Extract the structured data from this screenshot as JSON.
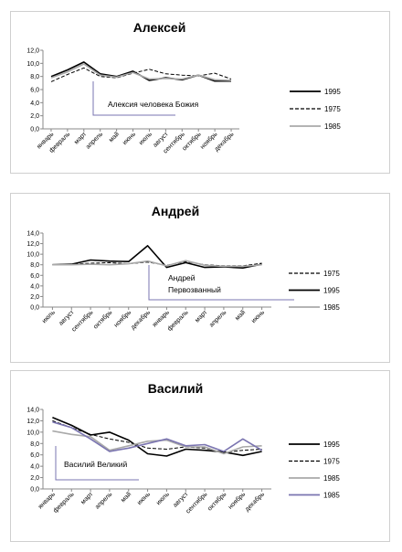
{
  "chart_data": [
    {
      "type": "line",
      "title": "Алексей",
      "categories": [
        "январь",
        "февраль",
        "март",
        "апрель",
        "май",
        "июнь",
        "июль",
        "август",
        "сентябрь",
        "октябрь",
        "ноябрь",
        "декабрь"
      ],
      "ylim": [
        0,
        12
      ],
      "yticks": [
        "0,0",
        "2,0",
        "4,0",
        "6,0",
        "8,0",
        "10,0",
        "12,0"
      ],
      "legend_position": "right",
      "annotation": "Алексия человека Божия",
      "series": [
        {
          "name": "1995",
          "style": "solid-black",
          "values": [
            8.0,
            9.0,
            10.2,
            8.4,
            8.0,
            8.8,
            7.4,
            7.8,
            7.5,
            8.2,
            7.3,
            7.3
          ]
        },
        {
          "name": "1975",
          "style": "dashed-black",
          "values": [
            7.2,
            8.3,
            9.3,
            8.0,
            7.8,
            8.5,
            9.1,
            8.4,
            8.2,
            8.1,
            8.5,
            7.6
          ]
        },
        {
          "name": "1985",
          "style": "solid-gray",
          "values": [
            7.8,
            8.7,
            9.9,
            8.2,
            7.9,
            8.6,
            7.6,
            7.7,
            7.6,
            8.2,
            7.5,
            7.4
          ]
        }
      ]
    },
    {
      "type": "line",
      "title": "Андрей",
      "categories": [
        "июль",
        "август",
        "сентябрь",
        "октябрь",
        "ноябрь",
        "декабрь",
        "январь",
        "февраль",
        "март",
        "апрель",
        "май",
        "июнь"
      ],
      "ylim": [
        0,
        14
      ],
      "yticks": [
        "0,0",
        "2,0",
        "4,0",
        "6,0",
        "8,0",
        "10,0",
        "12,0",
        "14,0"
      ],
      "legend_position": "right",
      "annotation": [
        "Андрей",
        "Первозванный"
      ],
      "series": [
        {
          "name": "1975",
          "style": "dashed-black",
          "values": [
            8.0,
            8.1,
            8.3,
            8.4,
            8.2,
            8.5,
            7.9,
            8.6,
            8.0,
            7.8,
            7.8,
            8.3
          ]
        },
        {
          "name": "1995",
          "style": "solid-black",
          "values": [
            8.0,
            8.1,
            8.9,
            8.7,
            8.6,
            11.6,
            7.5,
            8.4,
            7.5,
            7.6,
            7.4,
            8.1
          ]
        },
        {
          "name": "1985",
          "style": "solid-gray",
          "values": [
            8.0,
            8.0,
            8.1,
            8.0,
            8.2,
            8.7,
            7.8,
            8.8,
            7.9,
            7.7,
            7.7,
            8.0
          ]
        }
      ]
    },
    {
      "type": "line",
      "title": "Василий",
      "categories": [
        "январь",
        "февраль",
        "март",
        "апрель",
        "май",
        "июнь",
        "июль",
        "август",
        "сентябрь",
        "октябрь",
        "ноябрь",
        "декабрь"
      ],
      "ylim": [
        0,
        14
      ],
      "yticks": [
        "0,0",
        "2,0",
        "4,0",
        "6,0",
        "8,0",
        "10,0",
        "12,0",
        "14,0"
      ],
      "legend_position": "right",
      "annotation": "Василий Великий",
      "series": [
        {
          "name": "1995",
          "style": "solid-black",
          "values": [
            12.6,
            11.2,
            9.5,
            10.0,
            8.6,
            6.2,
            5.8,
            7.0,
            6.8,
            6.5,
            5.9,
            6.6
          ]
        },
        {
          "name": "1975",
          "style": "dashed-black",
          "values": [
            12.0,
            10.8,
            9.6,
            8.8,
            8.2,
            7.2,
            7.0,
            7.4,
            7.2,
            6.4,
            6.8,
            7.0
          ]
        },
        {
          "name": "1985",
          "style": "solid-gray",
          "values": [
            10.2,
            9.6,
            9.2,
            6.8,
            7.6,
            8.4,
            8.6,
            7.4,
            7.4,
            6.2,
            7.4,
            7.6
          ]
        },
        {
          "name": "1985",
          "style": "solid-purple",
          "values": [
            11.8,
            10.8,
            8.8,
            6.6,
            7.2,
            8.0,
            8.8,
            7.6,
            7.8,
            6.6,
            8.8,
            6.8
          ]
        }
      ]
    }
  ]
}
